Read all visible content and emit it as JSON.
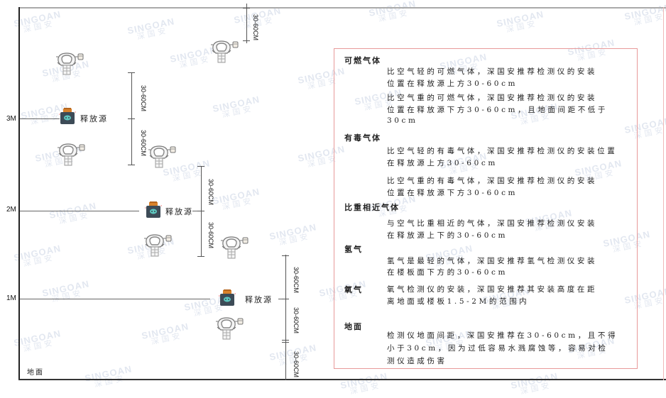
{
  "watermark": {
    "brand": "SINGOAN",
    "cn": "深国安"
  },
  "levels": {
    "m3": "3M",
    "m2": "2M",
    "m1": "1M",
    "ground": "地面"
  },
  "source_label": "释放源",
  "dimension_label": "30-60CM",
  "colors": {
    "panel_border": "#e89a9a",
    "source_body": "#3d4b57",
    "source_cap": "#d9822b",
    "source_face": "#5ec8c0"
  },
  "panel": {
    "sections": [
      {
        "title": "可燃气体",
        "paragraphs": [
          [
            "比空气轻的可燃气体，深国安推荐检测仪的安装",
            "位置在释放源上方30-60cm"
          ],
          [
            "比空气重的可燃气体，深国安推荐检测仪的安装",
            "位置在释放源下方30-60cm，且地面间距不低于",
            "30cm"
          ]
        ]
      },
      {
        "title": "有毒气体",
        "paragraphs": [
          [
            "比空气轻的有毒气体，深国安推荐检测仪的安装位置",
            "在释放源上方30-60cm"
          ],
          [
            "比空气重的有毒气体，深国安推荐检测仪的安装",
            "位置在释放源下方30-60cm"
          ]
        ]
      },
      {
        "title": "比重相近气体",
        "paragraphs": [
          [
            "与空气比重相近的气体，深国安推荐检测仪安装",
            "在释放源上下的30-60cm"
          ]
        ]
      },
      {
        "title": "氢气",
        "paragraphs": [
          [
            "氢气是最轻的气体，深国安推荐氢气检测仪安装",
            "在楼板面下方的30-60cm"
          ]
        ]
      },
      {
        "title": "氧气",
        "paragraphs": [
          [
            "氧气检测仪的安装，深国安推荐其安装高度在距",
            "离地面或楼板1.5-2M的范围内"
          ]
        ]
      },
      {
        "title": "地面",
        "paragraphs": [
          [
            "检测仪地面间距，深国安推荐在30-60cm，且不得",
            "小于30cm，因为过低容易水溅腐蚀等，容易对检",
            "测仪造成伤害"
          ]
        ]
      }
    ]
  }
}
